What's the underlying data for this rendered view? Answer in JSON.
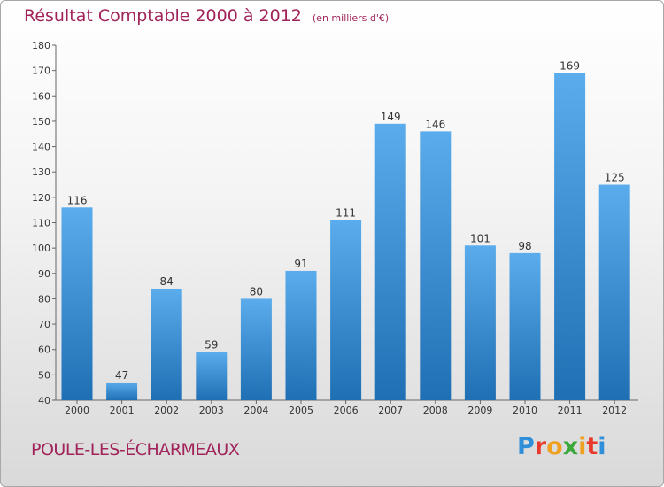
{
  "chart_data": {
    "type": "bar",
    "title": "Résultat Comptable 2000 à 2012",
    "subtitle": "(en milliers d'€)",
    "categories": [
      "2000",
      "2001",
      "2002",
      "2003",
      "2004",
      "2005",
      "2006",
      "2007",
      "2008",
      "2009",
      "2010",
      "2011",
      "2012"
    ],
    "values": [
      116,
      47,
      84,
      59,
      80,
      91,
      111,
      149,
      146,
      101,
      98,
      169,
      125
    ],
    "ylim": [
      40,
      180
    ],
    "yticks": [
      40,
      50,
      60,
      70,
      80,
      90,
      100,
      110,
      120,
      130,
      140,
      150,
      160,
      170,
      180
    ],
    "xlabel": "",
    "ylabel": "",
    "grid": false,
    "legend": "none"
  },
  "footer": {
    "town": "POULE-LES-ÉCHARMEAUX",
    "brand": "Proxiti"
  },
  "colors": {
    "title": "#a0245a",
    "bar_top": "#5aacec",
    "bar_bottom": "#1f6fb4",
    "axis": "#666666",
    "text": "#333333",
    "brand_letters": [
      "#2f8fd8",
      "#e83a2c",
      "#f0a020",
      "#3aa83a",
      "#f0a020",
      "#e83a2c",
      "#2f8fd8"
    ]
  }
}
